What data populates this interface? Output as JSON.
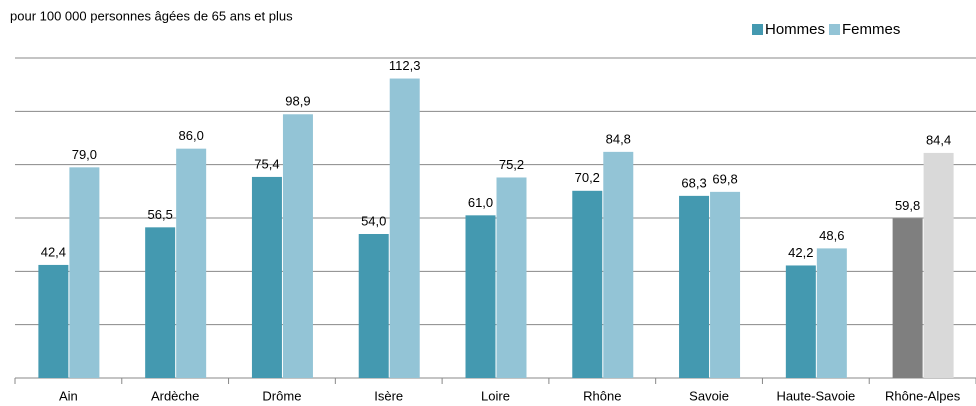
{
  "chart_data": {
    "type": "bar",
    "subtitle": "pour 100 000 personnes âgées de 65 ans et plus",
    "categories": [
      "Ain",
      "Ardèche",
      "Drôme",
      "Isère",
      "Loire",
      "Rhône",
      "Savoie",
      "Haute-Savoie",
      "Rhône-Alpes"
    ],
    "series": [
      {
        "name": "Hommes",
        "color": "#4499b0",
        "point_colors": [
          "#4499b0",
          "#4499b0",
          "#4499b0",
          "#4499b0",
          "#4499b0",
          "#4499b0",
          "#4499b0",
          "#4499b0",
          "#7f7f7f"
        ],
        "values": [
          42.4,
          56.5,
          75.4,
          54.0,
          61.0,
          70.2,
          68.3,
          42.2,
          59.8
        ],
        "value_labels": [
          "42,4",
          "56,5",
          "75,4",
          "54,0",
          "61,0",
          "70,2",
          "68,3",
          "42,2",
          "59,8"
        ]
      },
      {
        "name": "Femmes",
        "color": "#93c4d6",
        "point_colors": [
          "#93c4d6",
          "#93c4d6",
          "#93c4d6",
          "#93c4d6",
          "#93c4d6",
          "#93c4d6",
          "#93c4d6",
          "#93c4d6",
          "#d9d9d9"
        ],
        "values": [
          79.0,
          86.0,
          98.9,
          112.3,
          75.2,
          84.8,
          69.8,
          48.6,
          84.4
        ],
        "value_labels": [
          "79,0",
          "86,0",
          "98,9",
          "112,3",
          "75,2",
          "84,8",
          "69,8",
          "48,6",
          "84,4"
        ]
      }
    ],
    "ylim": [
      0,
      120
    ],
    "yticks": [
      0,
      20,
      40,
      60,
      80,
      100,
      120
    ],
    "grid": true,
    "legend": "top-right"
  }
}
